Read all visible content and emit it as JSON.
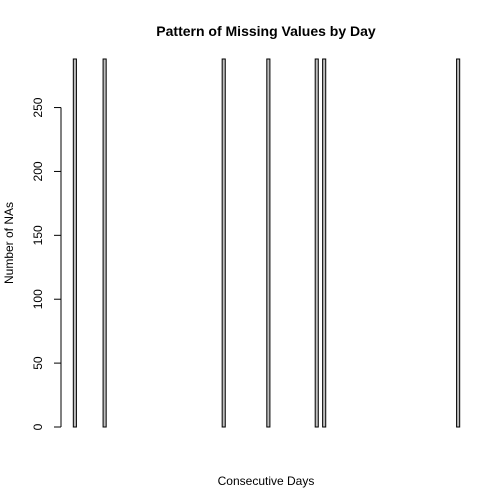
{
  "chart_data": {
    "type": "bar",
    "title": "Pattern of Missing Values by Day",
    "xlabel": "Consecutive Days",
    "ylabel": "Number of NAs",
    "ylim": [
      0,
      288
    ],
    "yticks": [
      0,
      50,
      100,
      150,
      200,
      250
    ],
    "grid": false,
    "values": [
      288,
      0,
      0,
      0,
      0,
      0,
      0,
      0,
      288,
      0,
      0,
      0,
      0,
      0,
      0,
      0,
      0,
      0,
      0,
      0,
      0,
      0,
      0,
      0,
      0,
      0,
      0,
      0,
      0,
      0,
      0,
      0,
      0,
      0,
      0,
      0,
      0,
      0,
      0,
      0,
      288,
      0,
      0,
      0,
      0,
      0,
      0,
      0,
      0,
      0,
      0,
      0,
      288,
      0,
      0,
      0,
      0,
      0,
      0,
      0,
      0,
      0,
      0,
      0,
      0,
      288,
      0,
      288,
      0,
      0,
      0,
      0,
      0,
      0,
      0,
      0,
      0,
      0,
      0,
      0,
      0,
      0,
      0,
      0,
      0,
      0,
      0,
      0,
      0,
      0,
      0,
      0,
      0,
      0,
      0,
      0,
      0,
      0,
      0,
      0,
      0,
      0,
      0,
      288
    ],
    "bar_color": "#bebebe",
    "border_color": "#000000"
  }
}
